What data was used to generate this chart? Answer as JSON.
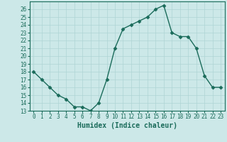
{
  "xlabel": "Humidex (Indice chaleur)",
  "x": [
    0,
    1,
    2,
    3,
    4,
    5,
    6,
    7,
    8,
    9,
    10,
    11,
    12,
    13,
    14,
    15,
    16,
    17,
    18,
    19,
    20,
    21,
    22,
    23
  ],
  "y": [
    18,
    17,
    16,
    15,
    14.5,
    13.5,
    13.5,
    13,
    14,
    17,
    21,
    23.5,
    24,
    24.5,
    25,
    26,
    26.5,
    23,
    22.5,
    22.5,
    21,
    17.5,
    16,
    16
  ],
  "line_color": "#1a6b5a",
  "marker": "D",
  "marker_size": 2.5,
  "line_width": 1.0,
  "bg_color": "#cce8e8",
  "grid_color": "#afd4d4",
  "ylim": [
    13,
    27
  ],
  "xlim": [
    -0.5,
    23.5
  ],
  "yticks": [
    13,
    14,
    15,
    16,
    17,
    18,
    19,
    20,
    21,
    22,
    23,
    24,
    25,
    26
  ],
  "xticks": [
    0,
    1,
    2,
    3,
    4,
    5,
    6,
    7,
    8,
    9,
    10,
    11,
    12,
    13,
    14,
    15,
    16,
    17,
    18,
    19,
    20,
    21,
    22,
    23
  ],
  "tick_fontsize": 5.5,
  "xlabel_fontsize": 7
}
